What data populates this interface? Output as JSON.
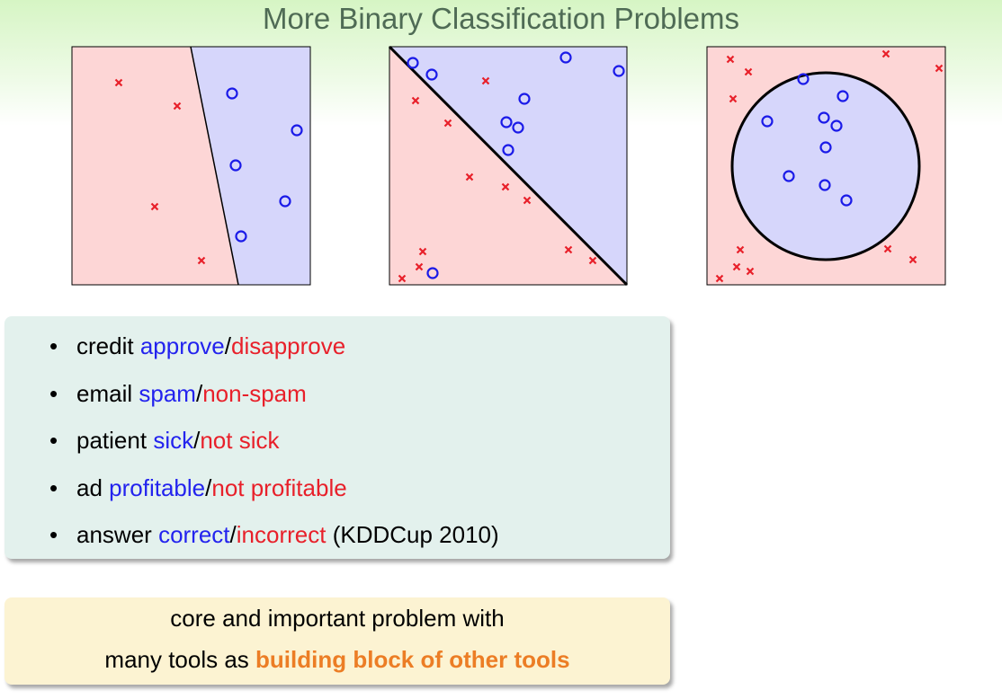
{
  "title": "More Binary Classification Problems",
  "separator": "/",
  "items": [
    {
      "lead": "credit",
      "positive": "approve",
      "negative": "disapprove"
    },
    {
      "lead": "email",
      "positive": "spam",
      "negative": "non-spam"
    },
    {
      "lead": "patient",
      "positive": "sick",
      "negative": "not sick"
    },
    {
      "lead": "ad",
      "positive": "profitable",
      "negative": "not profitable"
    },
    {
      "lead": "answer",
      "positive": "correct",
      "negative": "incorrect",
      "note": "(KDDCup 2010)"
    }
  ],
  "callout": {
    "line1": "core and important problem with",
    "line2": "many tools as",
    "highlight": "building block of other tools"
  }
}
